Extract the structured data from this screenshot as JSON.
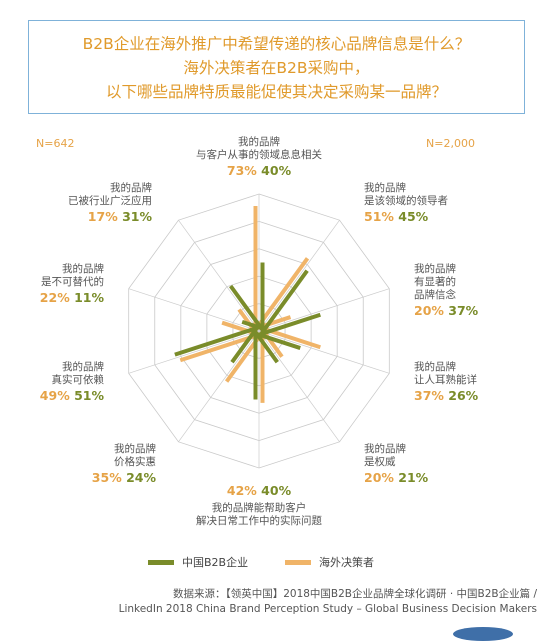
{
  "title": {
    "line1": "B2B企业在海外推广中希望传递的核心品牌信息是什么？",
    "line2": "海外决策者在B2B采购中，",
    "line3": "以下哪些品牌特质最能促使其决定采购某一品牌？"
  },
  "sample_left": "N=642",
  "sample_right": "N=2,000",
  "chart_data": {
    "type": "radar",
    "max": 80,
    "rings": 5,
    "categories": [
      "我的品牌与客户从事的领域息息相关",
      "我的品牌是该领域的领导者",
      "我的品牌有显著的品牌信念",
      "我的品牌让人耳熟能详",
      "我的品牌是权威",
      "我的品牌能帮助客户解决日常工作中的实际问题",
      "我的品牌价格实惠",
      "我的品牌真实可依赖",
      "我的品牌是不可替代的",
      "我的品牌已被行业广泛应用"
    ],
    "series": [
      {
        "name": "中国B2B企业",
        "color": "#7a8c2a",
        "values": [
          40,
          45,
          37,
          26,
          21,
          40,
          24,
          51,
          11,
          31
        ]
      },
      {
        "name": "海外决策者",
        "color": "#f0b468",
        "values": [
          73,
          51,
          20,
          37,
          20,
          42,
          35,
          49,
          22,
          17
        ]
      }
    ]
  },
  "labels": [
    {
      "lines": [
        "我的品牌",
        "与客户从事的领域息息相关"
      ],
      "a": "73%",
      "b": "40%"
    },
    {
      "lines": [
        "我的品牌",
        "是该领域的领导者"
      ],
      "a": "51%",
      "b": "45%"
    },
    {
      "lines": [
        "我的品牌",
        "有显著的",
        "品牌信念"
      ],
      "a": "20%",
      "b": "37%"
    },
    {
      "lines": [
        "我的品牌",
        "让人耳熟能详"
      ],
      "a": "37%",
      "b": "26%"
    },
    {
      "lines": [
        "我的品牌",
        "是权威"
      ],
      "a": "20%",
      "b": "21%"
    },
    {
      "lines": [
        "我的品牌能帮助客户",
        "解决日常工作中的实际问题"
      ],
      "a": "42%",
      "b": "40%"
    },
    {
      "lines": [
        "我的品牌",
        "价格实惠"
      ],
      "a": "35%",
      "b": "24%"
    },
    {
      "lines": [
        "我的品牌",
        "真实可依赖"
      ],
      "a": "49%",
      "b": "51%"
    },
    {
      "lines": [
        "我的品牌",
        "是不可替代的"
      ],
      "a": "22%",
      "b": "11%"
    },
    {
      "lines": [
        "我的品牌",
        "已被行业广泛应用"
      ],
      "a": "17%",
      "b": "31%"
    }
  ],
  "legend": {
    "cn_label": "中国B2B企业",
    "cn_color": "#7a8c2a",
    "overseas_label": "海外决策者",
    "overseas_color": "#f0b468"
  },
  "source": {
    "line1": "数据来源：【领英中国】2018中国B2B企业品牌全球化调研 · 中国B2B企业篇 /",
    "line2": "LinkedIn 2018 China Brand Perception Study – Global Business Decision Makers"
  }
}
